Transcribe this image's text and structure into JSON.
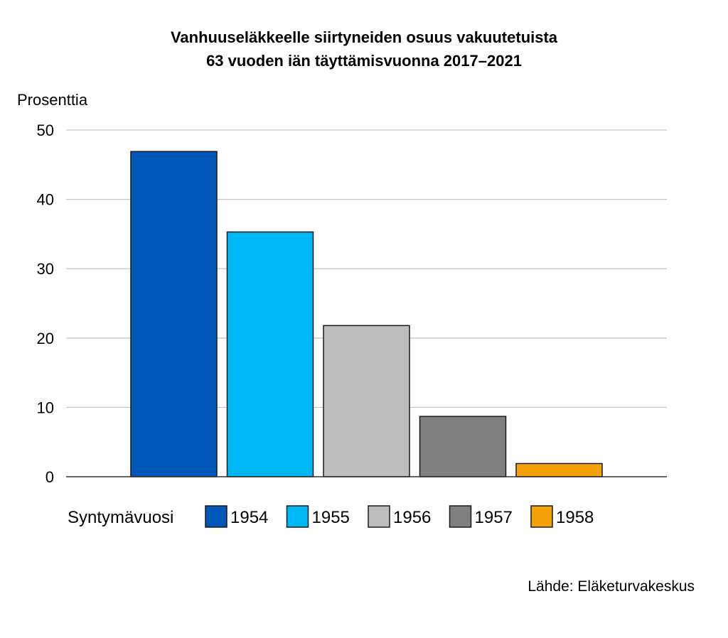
{
  "chart_data": {
    "type": "bar",
    "title": "Vanhuuseläkkeelle siirtyneiden osuus vakuutetuista",
    "subtitle": "63 vuoden iän täyttämisvuonna 2017–2021",
    "ylabel": "Prosenttia",
    "ylim": [
      0,
      50
    ],
    "yticks": [
      "0",
      "10",
      "20",
      "30",
      "40",
      "50"
    ],
    "grid": true,
    "legend_title": "Syntymävuosi",
    "legend_position": "bottom",
    "categories": [
      "1954",
      "1955",
      "1956",
      "1957",
      "1958"
    ],
    "values": [
      46.9,
      35.3,
      21.8,
      8.7,
      1.9
    ],
    "colors": [
      "#0057b8",
      "#00b7f5",
      "#bdbdbd",
      "#808080",
      "#f5a10a"
    ]
  },
  "source": "Lähde: Eläketurvakeskus"
}
